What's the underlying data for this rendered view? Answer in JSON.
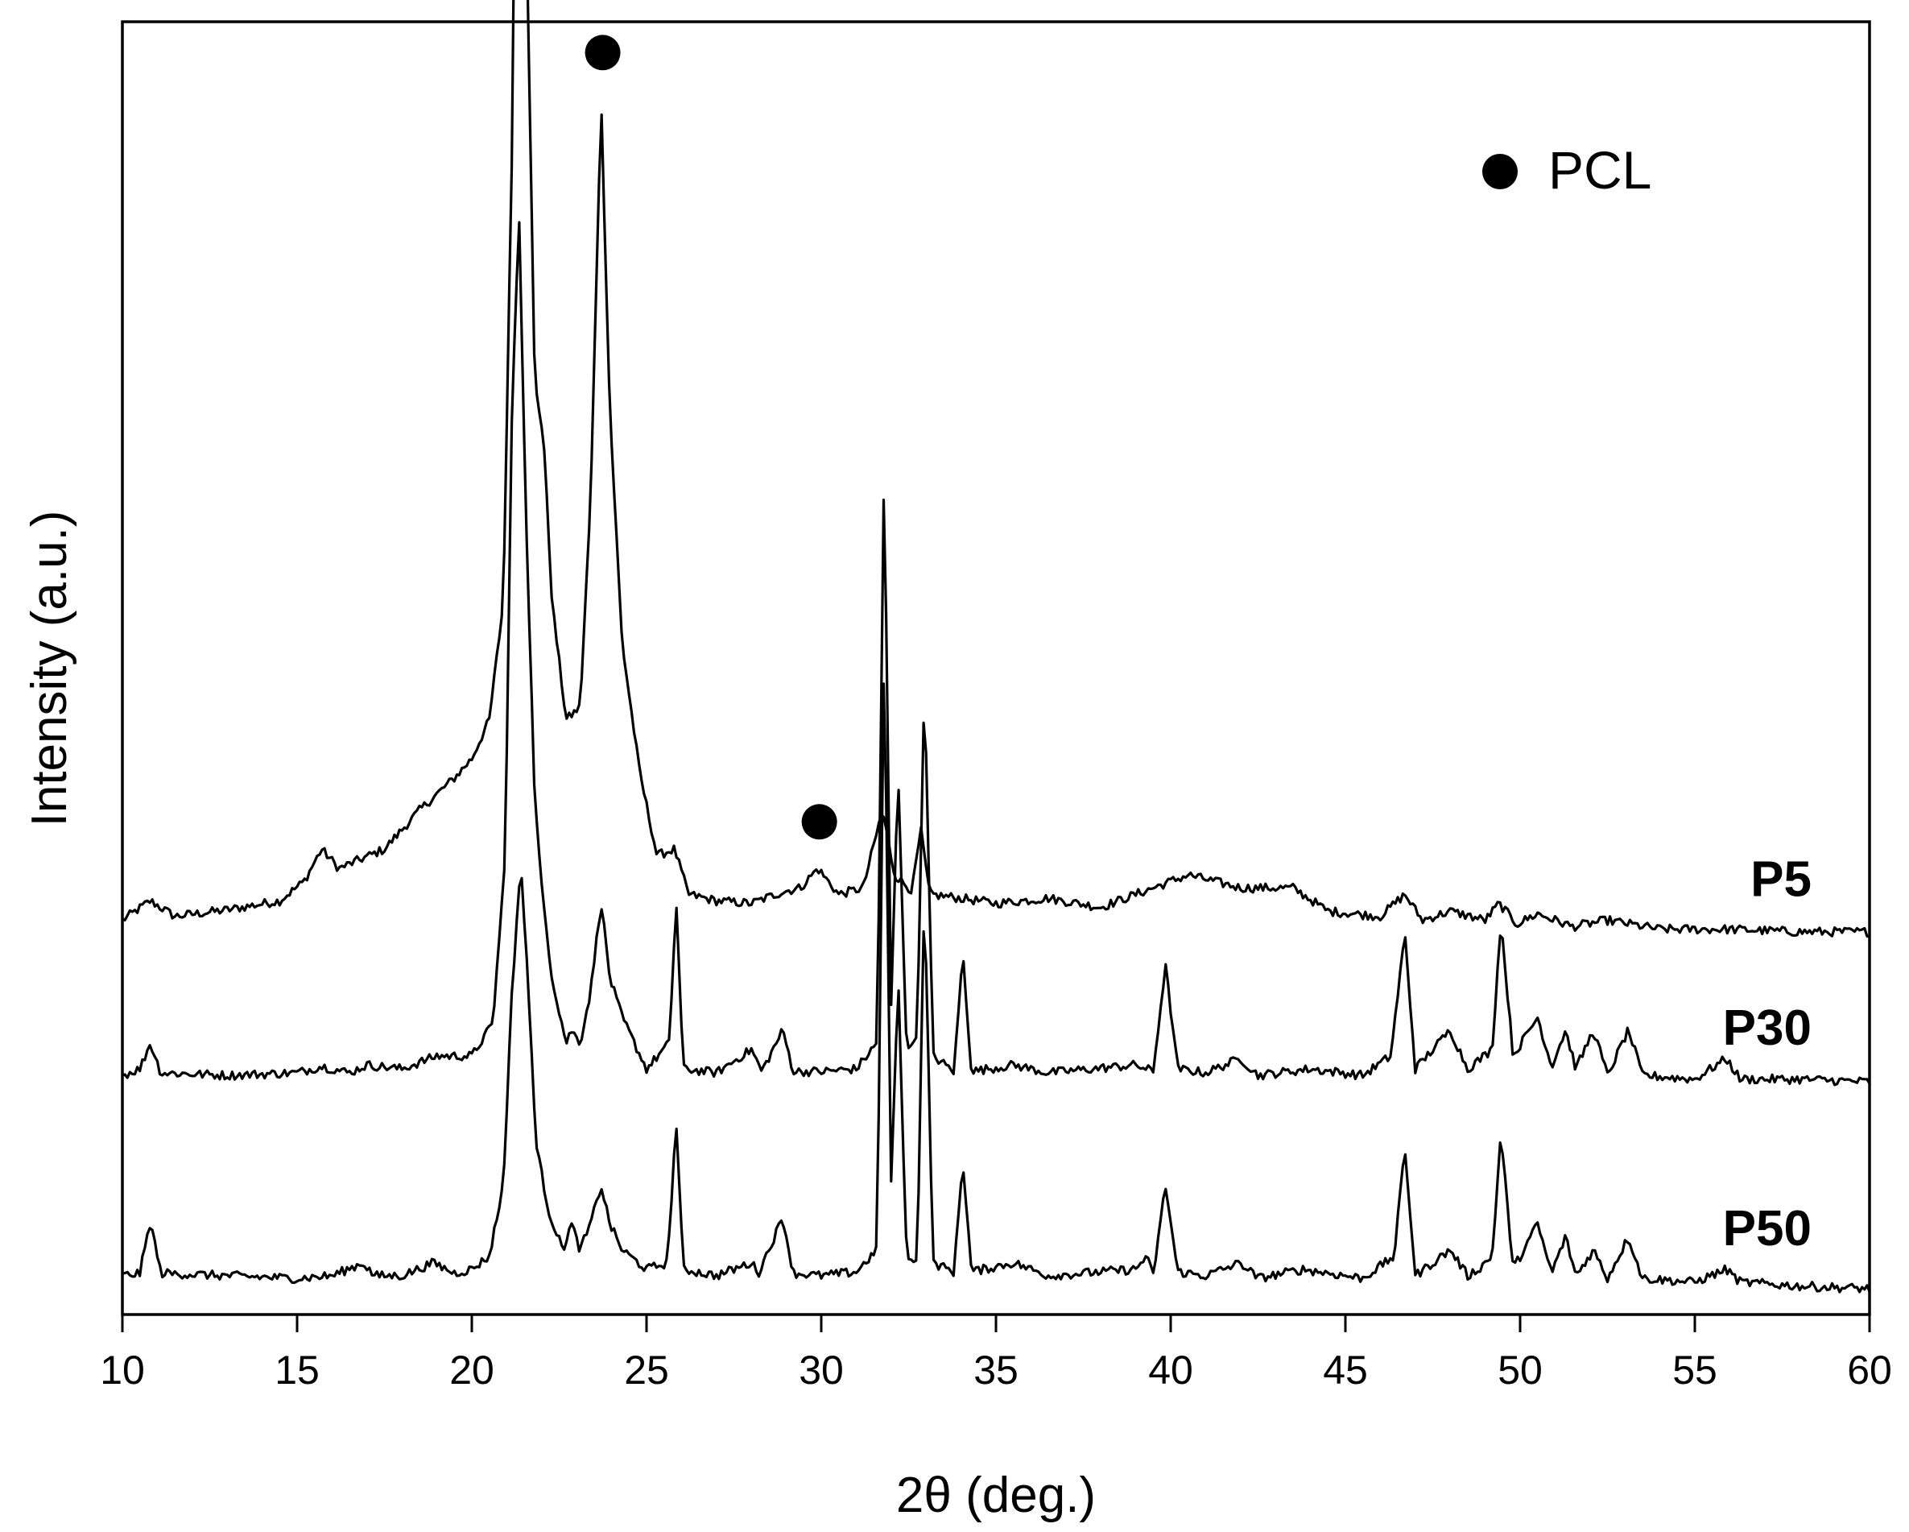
{
  "chart_data": {
    "type": "line",
    "title": "",
    "xlabel": "2θ (deg.)",
    "ylabel": "Intensity (a.u.)",
    "xlim": [
      10,
      60
    ],
    "x_ticks": [
      "10",
      "15",
      "20",
      "25",
      "30",
      "35",
      "40",
      "45",
      "50",
      "55",
      "60"
    ],
    "y_ticks": [],
    "grid": false,
    "legend": {
      "position": "top-right",
      "entries": [
        {
          "marker": "filled-circle",
          "label": "PCL",
          "color": "#000000"
        }
      ]
    },
    "colors": {
      "line": "#000000",
      "marker": "#000000"
    },
    "pcl_peaks_on": "P5",
    "pcl_peaks_x": [
      21.4,
      23.7,
      29.9
    ],
    "series": [
      {
        "name": "P5",
        "baseline": 0.3,
        "points": [
          [
            10,
            0.305
          ],
          [
            10.8,
            0.32
          ],
          [
            11.5,
            0.308
          ],
          [
            13,
            0.313
          ],
          [
            14.5,
            0.32
          ],
          [
            15.2,
            0.335
          ],
          [
            15.7,
            0.36
          ],
          [
            16.2,
            0.345
          ],
          [
            17.5,
            0.36
          ],
          [
            18.5,
            0.39
          ],
          [
            19.5,
            0.415
          ],
          [
            20,
            0.43
          ],
          [
            20.5,
            0.46
          ],
          [
            20.9,
            0.55
          ],
          [
            21.15,
            0.9
          ],
          [
            21.35,
            1.46
          ],
          [
            21.55,
            1.1
          ],
          [
            21.8,
            0.72
          ],
          [
            22.05,
            0.68
          ],
          [
            22.3,
            0.55
          ],
          [
            22.7,
            0.46
          ],
          [
            23.1,
            0.47
          ],
          [
            23.4,
            0.63
          ],
          [
            23.7,
            0.94
          ],
          [
            23.95,
            0.7
          ],
          [
            24.3,
            0.52
          ],
          [
            24.8,
            0.42
          ],
          [
            25.3,
            0.355
          ],
          [
            25.8,
            0.36
          ],
          [
            26.2,
            0.325
          ],
          [
            27,
            0.32
          ],
          [
            28,
            0.318
          ],
          [
            28.9,
            0.327
          ],
          [
            29.4,
            0.33
          ],
          [
            29.9,
            0.345
          ],
          [
            30.5,
            0.325
          ],
          [
            31.2,
            0.33
          ],
          [
            31.75,
            0.39
          ],
          [
            32.1,
            0.34
          ],
          [
            32.3,
            0.335
          ],
          [
            32.6,
            0.328
          ],
          [
            32.85,
            0.375
          ],
          [
            33.1,
            0.325
          ],
          [
            34,
            0.322
          ],
          [
            35,
            0.318
          ],
          [
            36.5,
            0.322
          ],
          [
            38,
            0.315
          ],
          [
            39.5,
            0.33
          ],
          [
            40.5,
            0.34
          ],
          [
            42,
            0.33
          ],
          [
            43.5,
            0.33
          ],
          [
            44.5,
            0.312
          ],
          [
            46,
            0.308
          ],
          [
            46.7,
            0.325
          ],
          [
            47.2,
            0.305
          ],
          [
            48,
            0.312
          ],
          [
            49,
            0.305
          ],
          [
            49.4,
            0.318
          ],
          [
            49.9,
            0.302
          ],
          [
            50.5,
            0.31
          ],
          [
            51.5,
            0.3
          ],
          [
            52.5,
            0.305
          ],
          [
            54,
            0.298
          ],
          [
            56,
            0.298
          ],
          [
            58,
            0.296
          ],
          [
            60,
            0.296
          ]
        ]
      },
      {
        "name": "P30",
        "baseline": 0.185,
        "points": [
          [
            10,
            0.185
          ],
          [
            10.5,
            0.19
          ],
          [
            10.8,
            0.21
          ],
          [
            11.1,
            0.187
          ],
          [
            13,
            0.185
          ],
          [
            15,
            0.187
          ],
          [
            15.7,
            0.192
          ],
          [
            16.5,
            0.187
          ],
          [
            17,
            0.193
          ],
          [
            18,
            0.19
          ],
          [
            19,
            0.2
          ],
          [
            20,
            0.2
          ],
          [
            20.6,
            0.225
          ],
          [
            20.95,
            0.35
          ],
          [
            21.15,
            0.7
          ],
          [
            21.35,
            0.85
          ],
          [
            21.55,
            0.62
          ],
          [
            21.8,
            0.4
          ],
          [
            22,
            0.33
          ],
          [
            22.3,
            0.26
          ],
          [
            22.7,
            0.21
          ],
          [
            22.85,
            0.22
          ],
          [
            23.1,
            0.21
          ],
          [
            23.4,
            0.25
          ],
          [
            23.7,
            0.32
          ],
          [
            23.95,
            0.26
          ],
          [
            24.3,
            0.23
          ],
          [
            25,
            0.19
          ],
          [
            25.65,
            0.21
          ],
          [
            25.85,
            0.32
          ],
          [
            26.05,
            0.19
          ],
          [
            27,
            0.187
          ],
          [
            28,
            0.205
          ],
          [
            28.3,
            0.188
          ],
          [
            28.9,
            0.22
          ],
          [
            29.2,
            0.188
          ],
          [
            30,
            0.188
          ],
          [
            31,
            0.19
          ],
          [
            31.6,
            0.21
          ],
          [
            31.8,
            0.66
          ],
          [
            32,
            0.24
          ],
          [
            32.2,
            0.42
          ],
          [
            32.45,
            0.2
          ],
          [
            32.75,
            0.22
          ],
          [
            32.95,
            0.49
          ],
          [
            33.2,
            0.2
          ],
          [
            33.8,
            0.188
          ],
          [
            34.05,
            0.28
          ],
          [
            34.3,
            0.188
          ],
          [
            35.5,
            0.193
          ],
          [
            36.5,
            0.187
          ],
          [
            39,
            0.193
          ],
          [
            39.5,
            0.188
          ],
          [
            39.85,
            0.27
          ],
          [
            40.2,
            0.19
          ],
          [
            41,
            0.187
          ],
          [
            42,
            0.198
          ],
          [
            42.5,
            0.185
          ],
          [
            44,
            0.19
          ],
          [
            45.5,
            0.185
          ],
          [
            46.3,
            0.2
          ],
          [
            46.7,
            0.295
          ],
          [
            47,
            0.19
          ],
          [
            48,
            0.22
          ],
          [
            48.5,
            0.19
          ],
          [
            49.2,
            0.205
          ],
          [
            49.45,
            0.305
          ],
          [
            49.8,
            0.2
          ],
          [
            50.5,
            0.23
          ],
          [
            50.9,
            0.192
          ],
          [
            51.3,
            0.22
          ],
          [
            51.6,
            0.19
          ],
          [
            52.1,
            0.22
          ],
          [
            52.5,
            0.185
          ],
          [
            53.1,
            0.22
          ],
          [
            53.5,
            0.185
          ],
          [
            55,
            0.182
          ],
          [
            55.9,
            0.198
          ],
          [
            56.3,
            0.182
          ],
          [
            58,
            0.182
          ],
          [
            60,
            0.18
          ]
        ]
      },
      {
        "name": "P50",
        "baseline": 0.03,
        "points": [
          [
            10,
            0.03
          ],
          [
            10.5,
            0.032
          ],
          [
            10.8,
            0.072
          ],
          [
            11.1,
            0.032
          ],
          [
            13,
            0.03
          ],
          [
            15,
            0.028
          ],
          [
            16,
            0.03
          ],
          [
            16.9,
            0.04
          ],
          [
            17.2,
            0.03
          ],
          [
            18,
            0.03
          ],
          [
            18.9,
            0.04
          ],
          [
            19.5,
            0.032
          ],
          [
            20,
            0.035
          ],
          [
            20.5,
            0.045
          ],
          [
            20.9,
            0.1
          ],
          [
            21.15,
            0.25
          ],
          [
            21.4,
            0.35
          ],
          [
            21.6,
            0.26
          ],
          [
            21.85,
            0.13
          ],
          [
            22.2,
            0.08
          ],
          [
            22.6,
            0.05
          ],
          [
            22.85,
            0.07
          ],
          [
            23.1,
            0.05
          ],
          [
            23.4,
            0.07
          ],
          [
            23.7,
            0.1
          ],
          [
            23.95,
            0.07
          ],
          [
            24.3,
            0.05
          ],
          [
            25,
            0.035
          ],
          [
            25.6,
            0.04
          ],
          [
            25.85,
            0.15
          ],
          [
            26.05,
            0.035
          ],
          [
            27,
            0.03
          ],
          [
            28,
            0.04
          ],
          [
            28.2,
            0.032
          ],
          [
            28.9,
            0.075
          ],
          [
            29.2,
            0.032
          ],
          [
            30,
            0.03
          ],
          [
            31,
            0.033
          ],
          [
            31.6,
            0.05
          ],
          [
            31.8,
            0.52
          ],
          [
            32,
            0.1
          ],
          [
            32.2,
            0.26
          ],
          [
            32.45,
            0.04
          ],
          [
            32.75,
            0.045
          ],
          [
            32.95,
            0.33
          ],
          [
            33.2,
            0.04
          ],
          [
            33.8,
            0.033
          ],
          [
            34.05,
            0.12
          ],
          [
            34.3,
            0.033
          ],
          [
            35.5,
            0.04
          ],
          [
            36.5,
            0.03
          ],
          [
            39,
            0.035
          ],
          [
            39.3,
            0.045
          ],
          [
            39.5,
            0.03
          ],
          [
            39.85,
            0.1
          ],
          [
            40.2,
            0.033
          ],
          [
            41,
            0.03
          ],
          [
            42,
            0.04
          ],
          [
            42.5,
            0.028
          ],
          [
            43.8,
            0.035
          ],
          [
            45,
            0.03
          ],
          [
            45.5,
            0.028
          ],
          [
            46.4,
            0.045
          ],
          [
            46.7,
            0.13
          ],
          [
            47,
            0.03
          ],
          [
            48,
            0.05
          ],
          [
            48.5,
            0.03
          ],
          [
            48.8,
            0.035
          ],
          [
            49.2,
            0.045
          ],
          [
            49.45,
            0.14
          ],
          [
            49.8,
            0.035
          ],
          [
            50.5,
            0.07
          ],
          [
            50.9,
            0.032
          ],
          [
            51.3,
            0.06
          ],
          [
            51.6,
            0.03
          ],
          [
            52.1,
            0.05
          ],
          [
            52.5,
            0.028
          ],
          [
            53.1,
            0.06
          ],
          [
            53.5,
            0.028
          ],
          [
            55,
            0.025
          ],
          [
            55.9,
            0.035
          ],
          [
            56.3,
            0.025
          ],
          [
            58,
            0.022
          ],
          [
            60,
            0.02
          ]
        ]
      }
    ]
  }
}
